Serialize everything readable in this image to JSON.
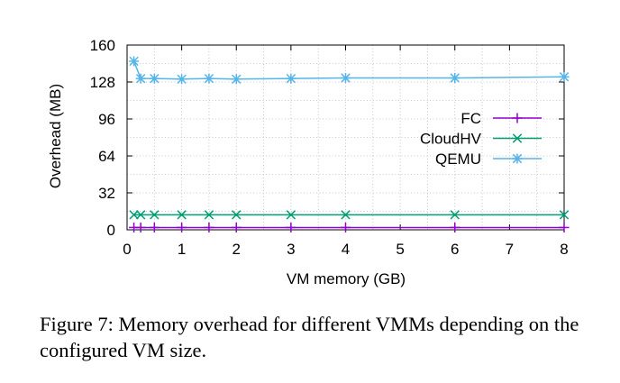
{
  "chart_data": {
    "type": "line",
    "title": "",
    "xlabel": "VM memory (GB)",
    "ylabel": "Overhead (MB)",
    "xlim": [
      0,
      8
    ],
    "ylim": [
      0,
      160
    ],
    "xticks": [
      0,
      1,
      2,
      3,
      4,
      5,
      6,
      7,
      8
    ],
    "yticks": [
      0,
      32,
      64,
      96,
      128,
      160
    ],
    "grid": true,
    "legend_position": "right",
    "series": [
      {
        "name": "FC",
        "color": "#9400d3",
        "marker": "plus",
        "points": [
          [
            0.125,
            2
          ],
          [
            0.25,
            2
          ],
          [
            0.5,
            2
          ],
          [
            1,
            2
          ],
          [
            1.5,
            2
          ],
          [
            2,
            2
          ],
          [
            3,
            2
          ],
          [
            4,
            2
          ],
          [
            6,
            2
          ],
          [
            8,
            2
          ]
        ]
      },
      {
        "name": "CloudHV",
        "color": "#009e73",
        "marker": "cross",
        "points": [
          [
            0.125,
            13
          ],
          [
            0.25,
            13
          ],
          [
            0.5,
            13
          ],
          [
            1,
            13
          ],
          [
            1.5,
            13
          ],
          [
            2,
            13
          ],
          [
            3,
            13
          ],
          [
            4,
            13
          ],
          [
            6,
            13
          ],
          [
            8,
            13
          ]
        ]
      },
      {
        "name": "QEMU",
        "color": "#56b4e9",
        "marker": "asterisk",
        "points": [
          [
            0.125,
            146
          ],
          [
            0.25,
            131
          ],
          [
            0.5,
            131
          ],
          [
            1,
            130.5
          ],
          [
            1.5,
            131
          ],
          [
            2,
            130.5
          ],
          [
            3,
            131
          ],
          [
            4,
            131.5
          ],
          [
            6,
            131.5
          ],
          [
            8,
            132.5
          ]
        ]
      }
    ]
  },
  "caption": "Figure 7: Memory overhead for different VMMs depending on the configured VM size."
}
